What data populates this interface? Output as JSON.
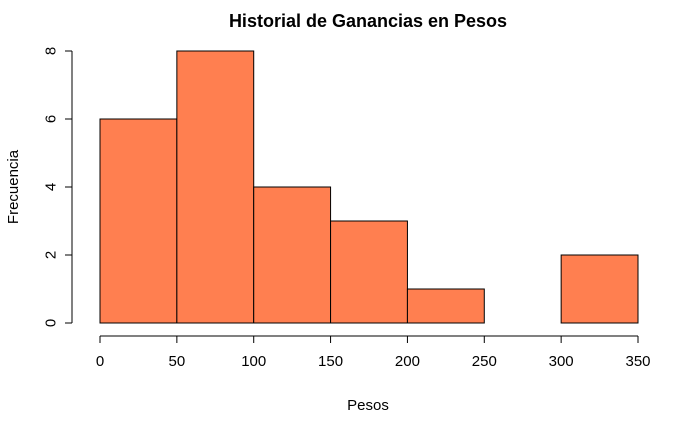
{
  "chart_data": {
    "type": "bar",
    "title": "Historial de Ganancias en Pesos",
    "xlabel": "Pesos",
    "ylabel": "Frecuencia",
    "bins": [
      {
        "start": 0,
        "end": 50,
        "count": 6
      },
      {
        "start": 50,
        "end": 100,
        "count": 8
      },
      {
        "start": 100,
        "end": 150,
        "count": 4
      },
      {
        "start": 150,
        "end": 200,
        "count": 3
      },
      {
        "start": 200,
        "end": 250,
        "count": 1
      },
      {
        "start": 250,
        "end": 300,
        "count": 0
      },
      {
        "start": 300,
        "end": 350,
        "count": 2
      }
    ],
    "xlim": [
      0,
      350
    ],
    "ylim": [
      0,
      8
    ],
    "x_ticks": [
      0,
      50,
      100,
      150,
      200,
      250,
      300,
      350
    ],
    "y_ticks": [
      0,
      2,
      4,
      6,
      8
    ],
    "grid": false,
    "bar_color": "#FF7F50",
    "edge_color": "#000000"
  }
}
